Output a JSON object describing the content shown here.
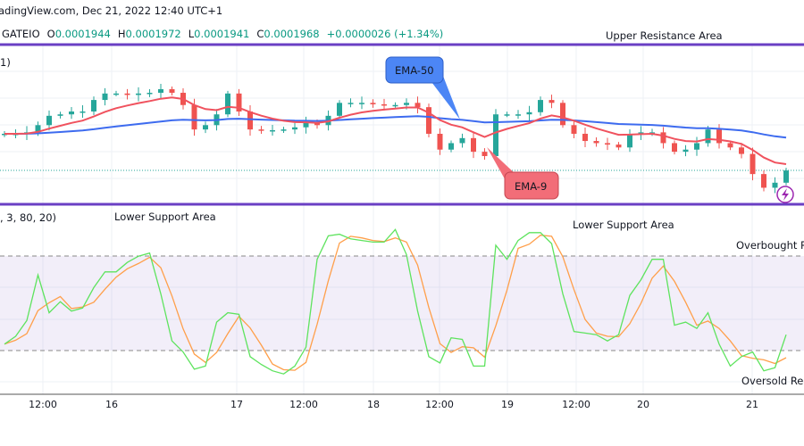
{
  "header": {
    "source": "adingView.com, Dec 21, 2022 12:40 UTC+1",
    "symbol": "GATEIO",
    "open_label": "O",
    "open": "0.0001944",
    "high_label": "H",
    "high": "0.0001972",
    "low_label": "L",
    "low": "0.0001941",
    "close_label": "C",
    "close": "0.0001968",
    "change": "+0.0000026 (+1.34%)"
  },
  "price_pane": {
    "indicator_label": "1)",
    "resistance_label": "Upper Resistance Area",
    "ema50_label": "EMA-50",
    "ema9_label": "EMA-9"
  },
  "stoch_pane": {
    "indicator_label": ", 3, 80, 20)",
    "support_label_1": "Lower Support Area",
    "support_label_2": "Lower Support Area",
    "overbought_label": "Overbought R",
    "oversold_label": "Oversold Reg"
  },
  "colors": {
    "up": "#26a69a",
    "down": "#ef5350",
    "ema9": "#f0525e",
    "ema50": "#3d6bef",
    "band": "#7e57c2",
    "k": "#5ee35e",
    "d": "#ff9f4a"
  },
  "icons": {
    "alert": "lightning-icon"
  },
  "chart_data": {
    "type": "candlestick",
    "ylim": [
      0.0001921,
      0.0002143
    ],
    "x_tick_labels": [
      "12:00",
      "16",
      "17",
      "12:00",
      "18",
      "12:00",
      "19",
      "12:00",
      "20",
      "21"
    ],
    "closes": [
      0.0002019,
      0.0002019,
      0.0002021,
      0.0002031,
      0.0002044,
      0.0002046,
      0.000205,
      0.000205,
      0.0002066,
      0.0002075,
      0.0002075,
      0.0002073,
      0.0002075,
      0.0002076,
      0.0002081,
      0.0002076,
      0.0002059,
      0.0002025,
      0.0002031,
      0.0002046,
      0.0002075,
      0.000205,
      0.0002025,
      0.0002024,
      0.0002024,
      0.0002025,
      0.0002028,
      0.0002034,
      0.0002031,
      0.0002044,
      0.0002062,
      0.0002062,
      0.0002062,
      0.000206,
      0.0002059,
      0.0002059,
      0.0002062,
      0.0002056,
      0.0002019,
      0.0001997,
      0.0002006,
      0.0002013,
      0.0001994,
      0.0001988,
      0.0002046,
      0.0002046,
      0.0002046,
      0.0002049,
      0.0002066,
      0.0002062,
      0.0002031,
      0.0002019,
      0.0002009,
      0.0002006,
      0.0002004,
      0.0002,
      0.0002019,
      0.0002021,
      0.0002021,
      0.0002006,
      0.0001994,
      0.0001997,
      0.0002006,
      0.0002025,
      0.0002006,
      0.0002,
      0.0001991,
      0.0001963,
      0.0001944,
      0.0001951,
      0.0001968
    ],
    "series": [
      {
        "name": "EMA-9",
        "period": 9
      },
      {
        "name": "EMA-50",
        "period": 50
      }
    ],
    "stochastic": {
      "params": [
        3,
        80,
        20
      ],
      "overbought": 80,
      "oversold": 20,
      "ylim": [
        0,
        100
      ],
      "k": [
        24,
        29,
        39,
        68,
        44,
        51,
        45,
        47,
        60,
        70,
        70,
        76,
        80,
        82,
        56,
        26,
        19,
        8,
        10,
        38,
        44,
        43,
        16,
        11,
        7,
        5,
        10,
        22,
        78,
        93,
        94,
        91,
        90,
        89,
        89,
        97,
        81,
        45,
        16,
        12,
        28,
        27,
        10,
        10,
        87,
        78,
        90,
        95,
        95,
        88,
        56,
        32,
        31,
        30,
        26,
        30,
        55,
        65,
        78,
        78,
        36,
        38,
        34,
        44,
        24,
        10,
        16,
        19,
        7,
        9,
        30
      ]
    },
    "annotations": [
      "Upper Resistance Area",
      "Lower Support Area",
      "Lower Support Area",
      "EMA-50",
      "EMA-9",
      "Overbought R",
      "Oversold Reg"
    ],
    "grid": true
  }
}
